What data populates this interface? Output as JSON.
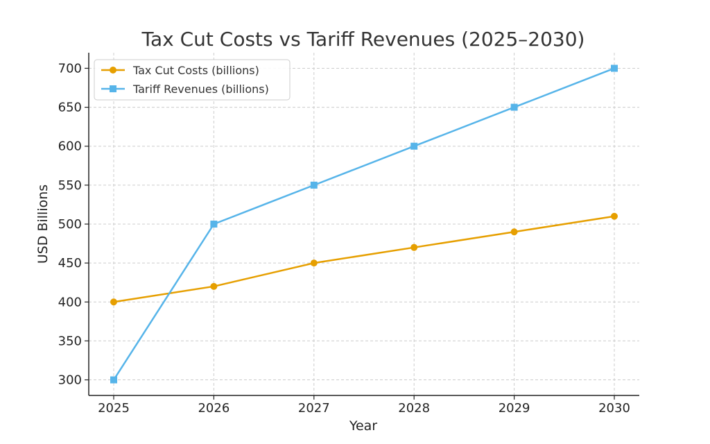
{
  "chart_data": {
    "type": "line",
    "title": "Tax Cut Costs vs Tariff Revenues (2025–2030)",
    "xlabel": "Year",
    "ylabel": "USD Billions",
    "x": [
      "2025",
      "2026",
      "2027",
      "2028",
      "2029",
      "2030"
    ],
    "yticks": [
      "300",
      "350",
      "400",
      "450",
      "500",
      "550",
      "600",
      "650",
      "700"
    ],
    "ylim": [
      280,
      720
    ],
    "grid": true,
    "legend_position": "top-left",
    "series": [
      {
        "name": "Tax Cut Costs (billions)",
        "values": [
          400,
          420,
          450,
          470,
          490,
          510
        ],
        "color": "#E69F00",
        "marker": "circle"
      },
      {
        "name": "Tariff Revenues (billions)",
        "values": [
          300,
          500,
          550,
          600,
          650,
          700
        ],
        "color": "#56B4E9",
        "marker": "square"
      }
    ]
  }
}
